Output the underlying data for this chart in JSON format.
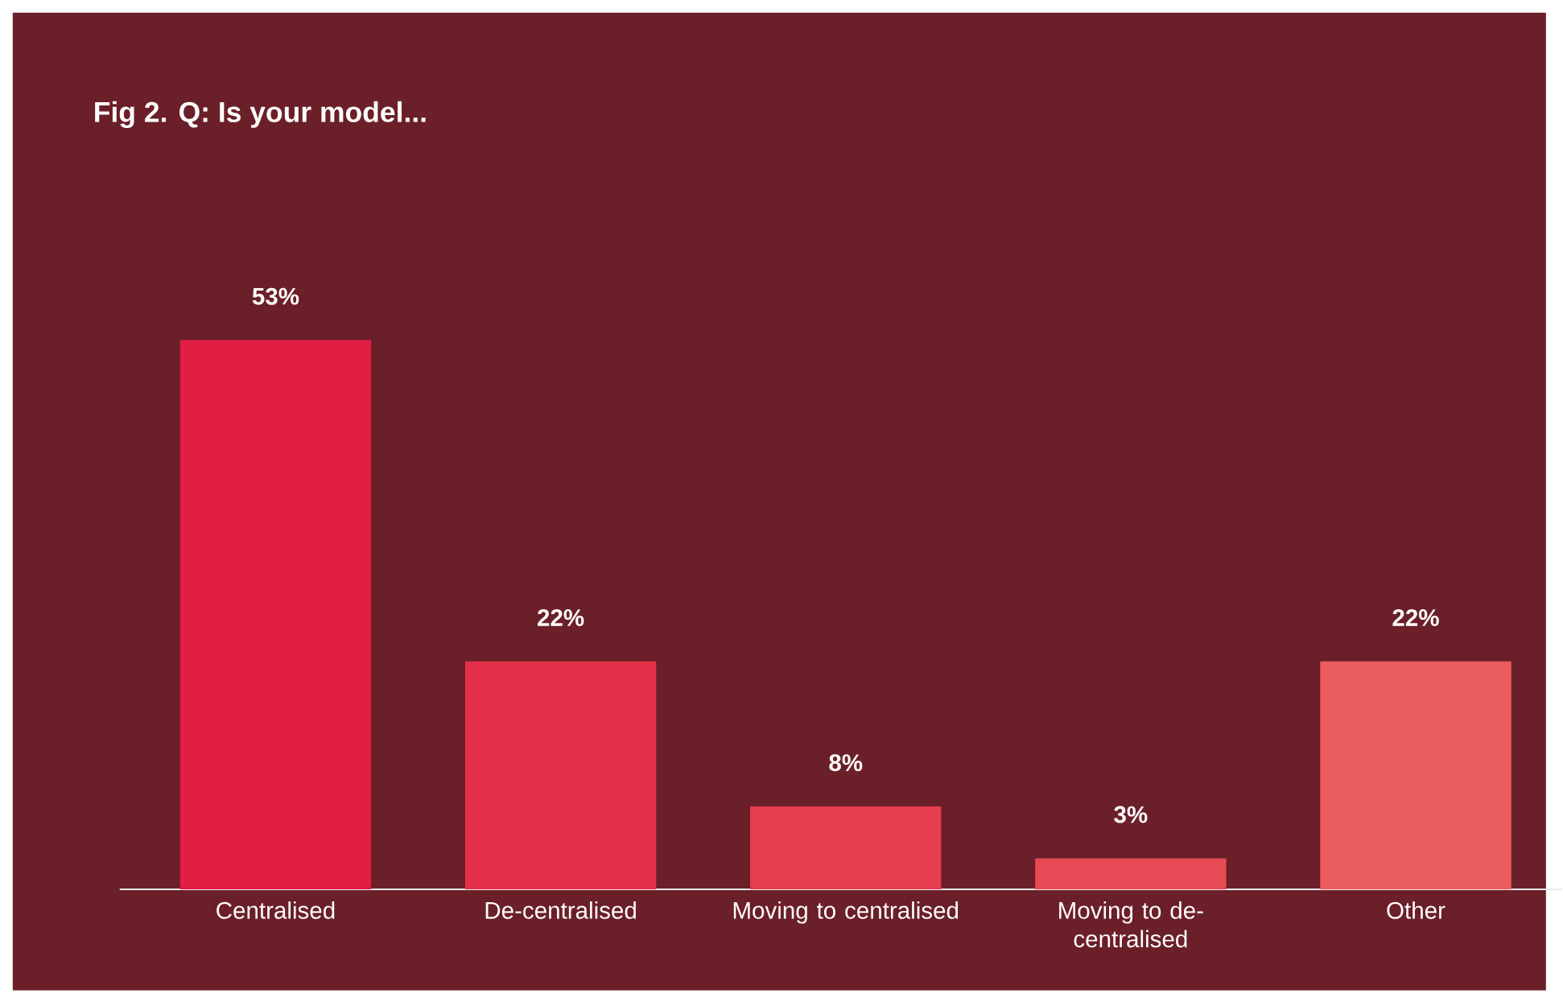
{
  "chart_data": {
    "type": "bar",
    "title": "Fig 2.  Q: Is your model...",
    "categories": [
      "Centralised",
      "De-centralised",
      "Moving to centralised",
      "Moving to de-centralised",
      "Other"
    ],
    "values": [
      53,
      22,
      8,
      3,
      22
    ],
    "colors": [
      "#e31e45",
      "#e5304a",
      "#e63d50",
      "#e84a56",
      "#eb5c5f"
    ],
    "value_labels": [
      "53%",
      "22%",
      "8%",
      "3%",
      "22%"
    ]
  }
}
